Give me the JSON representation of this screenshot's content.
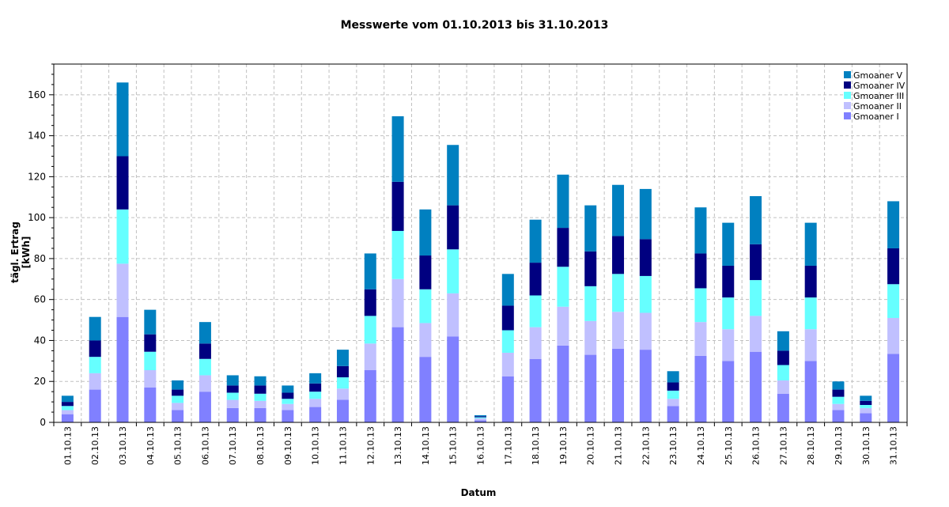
{
  "chart_data": {
    "type": "bar",
    "stacked": true,
    "title": "Messwerte vom 01.10.2013 bis 31.10.2013",
    "xlabel": "Datum",
    "ylabel": "tägl. Ertrag [kWh]",
    "ylim": [
      0,
      175
    ],
    "yticks": [
      0,
      20,
      40,
      60,
      80,
      100,
      120,
      140,
      160
    ],
    "grid": true,
    "legend_position": "top-right",
    "categories": [
      "01.10.13",
      "02.10.13",
      "03.10.13",
      "04.10.13",
      "05.10.13",
      "06.10.13",
      "07.10.13",
      "08.10.13",
      "09.10.13",
      "10.10.13",
      "11.10.13",
      "12.10.13",
      "13.10.13",
      "14.10.13",
      "15.10.13",
      "16.10.13",
      "17.10.13",
      "18.10.13",
      "19.10.13",
      "20.10.13",
      "21.10.13",
      "22.10.13",
      "23.10.13",
      "24.10.13",
      "25.10.13",
      "26.10.13",
      "27.10.13",
      "28.10.13",
      "29.10.13",
      "30.10.13",
      "31.10.13"
    ],
    "series": [
      {
        "name": "Gmoaner I",
        "color": "#8080ff",
        "values": [
          4,
          16,
          51.5,
          17,
          6,
          15,
          7,
          7,
          6,
          7.5,
          11,
          25.5,
          46.5,
          32,
          42,
          1,
          22.5,
          31,
          37.5,
          33,
          36,
          35.5,
          8,
          32.5,
          30,
          34.5,
          14,
          30,
          6,
          4.5,
          33.5
        ]
      },
      {
        "name": "Gmoaner II",
        "color": "#c0c0ff",
        "values": [
          2,
          8,
          26,
          8.5,
          3.5,
          8,
          4,
          3.5,
          3,
          4,
          5.5,
          13,
          23.5,
          16.5,
          21,
          1,
          11.5,
          15.5,
          19,
          16.5,
          18,
          18,
          3.5,
          16.5,
          15.5,
          17.5,
          6.5,
          15.5,
          3,
          2.5,
          17.5
        ]
      },
      {
        "name": "Gmoaner III",
        "color": "#66ffff",
        "values": [
          2,
          8,
          26.5,
          9,
          3.5,
          8,
          3.5,
          3.5,
          2.5,
          3.5,
          5.5,
          13.5,
          23.5,
          16.5,
          21.5,
          0.5,
          11,
          15.5,
          19.5,
          17,
          18.5,
          18,
          4,
          16.5,
          15.5,
          17.5,
          7.5,
          15.5,
          3.5,
          1.5,
          16.5
        ]
      },
      {
        "name": "Gmoaner IV",
        "color": "#000080",
        "values": [
          2,
          8,
          26,
          8.5,
          3,
          7.5,
          3.5,
          4,
          3,
          4,
          5.5,
          13,
          24,
          16.5,
          21.5,
          0.5,
          12,
          16,
          19,
          17,
          18.5,
          18,
          4,
          17,
          15.5,
          17.5,
          7,
          15.5,
          3.5,
          2,
          17.5
        ]
      },
      {
        "name": "Gmoaner V",
        "color": "#0080c0",
        "values": [
          3,
          11.5,
          36,
          12,
          4.5,
          10.5,
          5,
          4.5,
          3.5,
          5,
          8,
          17.5,
          32,
          22.5,
          29.5,
          0.5,
          15.5,
          21,
          26,
          22.5,
          25,
          24.5,
          5.5,
          22.5,
          21,
          23.5,
          9.5,
          21,
          4,
          2.5,
          23
        ]
      }
    ]
  }
}
